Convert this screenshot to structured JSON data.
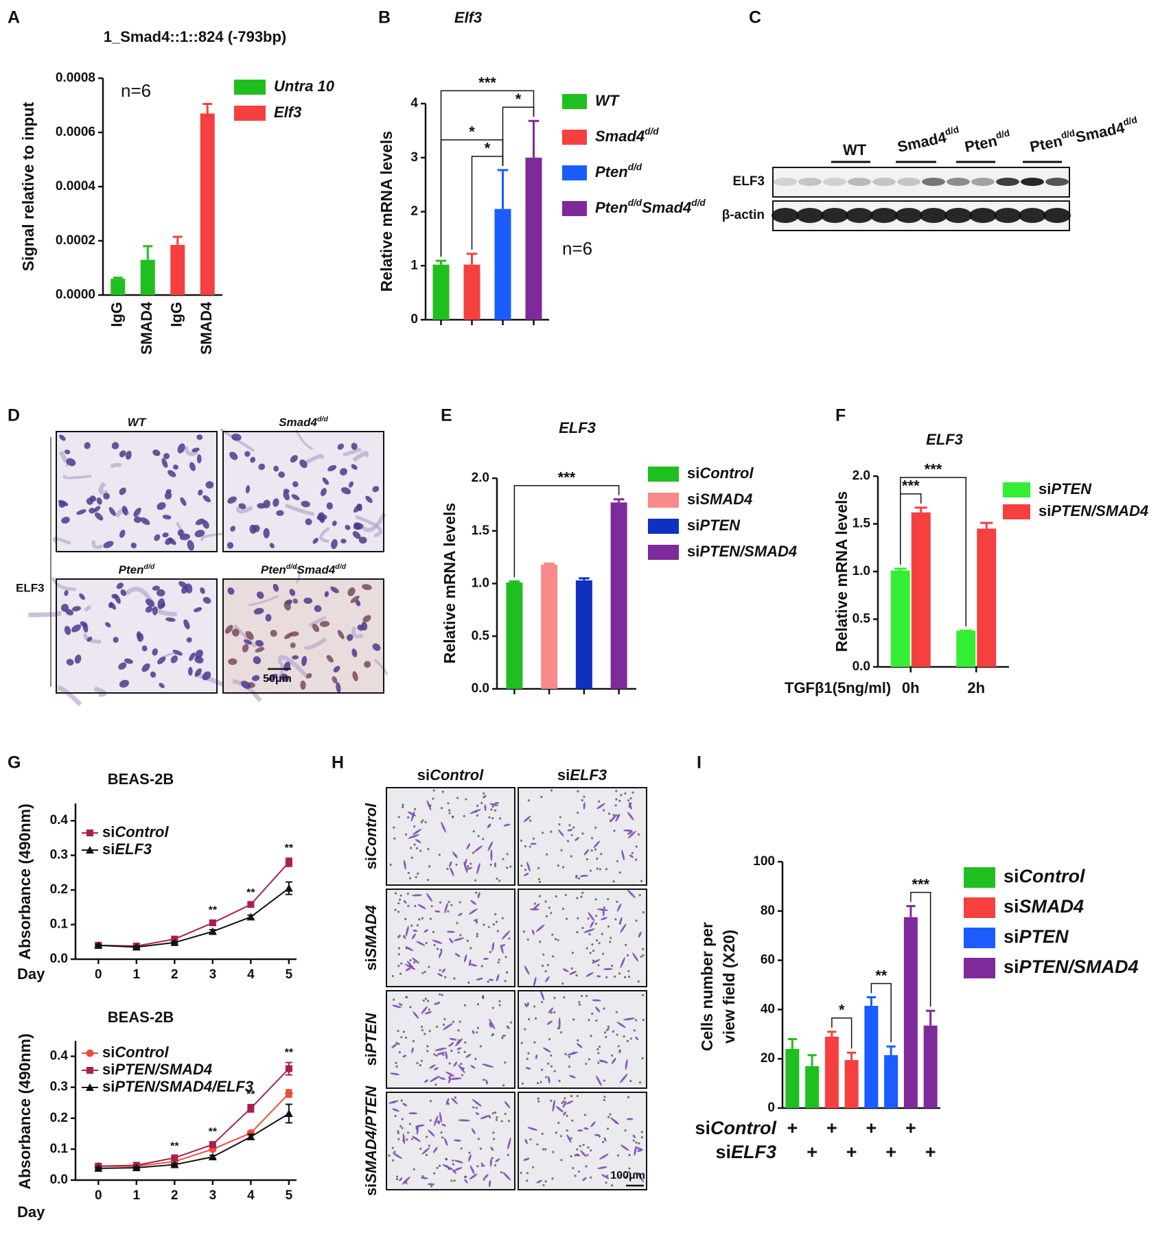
{
  "panel_labels": [
    "A",
    "B",
    "C",
    "D",
    "E",
    "F",
    "G",
    "H",
    "I"
  ],
  "chart_data": [
    {
      "type": "bar",
      "title": "1_Smad4::1::824 (-793bp)",
      "y_label": "Signal relative to input",
      "annotation": "n=6",
      "categories": [
        "IgG",
        "SMAD4",
        "IgG",
        "SMAD4"
      ],
      "rotate_categories": true,
      "series": [
        {
          "name": [
            {
              "text": "Untra 10",
              "italic": true
            }
          ],
          "color": "#1fbf1f",
          "values": [
            6e-05,
            0.00013,
            null,
            null
          ],
          "errors": [
            4e-06,
            5e-05,
            null,
            null
          ]
        },
        {
          "name": [
            {
              "text": "Elf3",
              "italic": true
            }
          ],
          "color": "#f5403f",
          "values": [
            null,
            null,
            0.000185,
            0.00067
          ],
          "errors": [
            null,
            null,
            3e-05,
            3.5e-05
          ]
        }
      ],
      "ylim": [
        0,
        0.0008
      ],
      "yticks": [
        {
          "value": 0,
          "label": "0.0000"
        },
        0.0002,
        0.0004,
        0.0006,
        0.0008
      ]
    },
    {
      "type": "bar",
      "title": [
        {
          "text": "Elf3",
          "italic": true
        }
      ],
      "y_label": "Relative mRNA levels",
      "annotation": "n=6",
      "categories": [
        null,
        null,
        null,
        null
      ],
      "series": [
        {
          "name": [
            {
              "text": "WT",
              "italic": true
            }
          ],
          "color": "#1fbf1f",
          "values": [
            1.02,
            null,
            null,
            null
          ],
          "errors": [
            0.07,
            null,
            null,
            null
          ]
        },
        {
          "name": [
            {
              "text": "Smad4",
              "italic": true
            },
            {
              "text": "d/d",
              "italic": true,
              "sup": true
            }
          ],
          "color": "#f5403f",
          "values": [
            null,
            1.02,
            null,
            null
          ],
          "errors": [
            null,
            0.2,
            null,
            null
          ]
        },
        {
          "name": [
            {
              "text": "Pten",
              "italic": true
            },
            {
              "text": "d/d",
              "italic": true,
              "sup": true
            }
          ],
          "color": "#1a5cff",
          "values": [
            null,
            null,
            2.05,
            null
          ],
          "errors": [
            null,
            null,
            0.72,
            null
          ]
        },
        {
          "name": [
            {
              "text": "Pten",
              "italic": true
            },
            {
              "text": "d/d",
              "italic": true,
              "sup": true
            },
            {
              "text": "Smad4",
              "italic": true
            },
            {
              "text": "d/d",
              "italic": true,
              "sup": true
            }
          ],
          "color": "#7f2a9a",
          "values": [
            null,
            null,
            null,
            3.0
          ],
          "errors": [
            null,
            null,
            null,
            0.68
          ]
        }
      ],
      "ylim": [
        0,
        4
      ],
      "yticks": [
        0,
        1,
        2,
        3,
        4
      ],
      "significance": [
        {
          "from": [
            1,
            1
          ],
          "to": [
            2,
            2
          ],
          "label": "*"
        },
        {
          "from": [
            0,
            0
          ],
          "to": [
            2,
            2
          ],
          "label": "*"
        },
        {
          "from": [
            2,
            2
          ],
          "to": [
            3,
            3
          ],
          "label": "*"
        },
        {
          "from": [
            0,
            0
          ],
          "to": [
            3,
            3
          ],
          "label": "***"
        }
      ]
    },
    {
      "type": "bar",
      "title": [
        {
          "text": "ELF3",
          "italic": true
        }
      ],
      "y_label": "Relative mRNA levels",
      "categories": [
        null,
        null,
        null,
        null
      ],
      "series": [
        {
          "name": [
            {
              "text": "si"
            },
            {
              "text": "Control",
              "italic": true
            }
          ],
          "color": "#1fbf1f",
          "values": [
            1.01,
            null,
            null,
            null
          ],
          "errors": [
            0.01,
            null,
            null,
            null
          ]
        },
        {
          "name": [
            {
              "text": "si"
            },
            {
              "text": "SMAD4",
              "italic": true
            }
          ],
          "color": "#f88a8a",
          "values": [
            null,
            1.18,
            null,
            null
          ],
          "errors": [
            null,
            0.01,
            null,
            null
          ]
        },
        {
          "name": [
            {
              "text": "si"
            },
            {
              "text": "PTEN",
              "italic": true
            }
          ],
          "color": "#1030c0",
          "values": [
            null,
            null,
            1.03,
            null
          ],
          "errors": [
            null,
            null,
            0.02,
            null
          ]
        },
        {
          "name": [
            {
              "text": "si"
            },
            {
              "text": "PTEN/SMAD4",
              "italic": true
            }
          ],
          "color": "#7d2a9a",
          "values": [
            null,
            null,
            null,
            1.77
          ],
          "errors": [
            null,
            null,
            null,
            0.03
          ]
        }
      ],
      "ylim": [
        0,
        2
      ],
      "yticks": [
        {
          "value": 0,
          "label": "0.0"
        },
        0.5,
        {
          "value": 1,
          "label": "1.0"
        },
        1.5,
        {
          "value": 2,
          "label": "2.0"
        }
      ],
      "significance": [
        {
          "from": [
            0,
            0
          ],
          "to": [
            3,
            3
          ],
          "label": "***"
        }
      ]
    },
    {
      "type": "bar",
      "title": [
        {
          "text": "ELF3",
          "italic": true
        }
      ],
      "y_label": "Relative mRNA levels",
      "x_label": "TGFβ1(5ng/ml)",
      "categories": [
        "0h",
        "2h"
      ],
      "series": [
        {
          "name": [
            {
              "text": "si"
            },
            {
              "text": "PTEN",
              "italic": true
            }
          ],
          "color": "#33ee33",
          "values": [
            1.01,
            0.38
          ],
          "errors": [
            0.02,
            0
          ]
        },
        {
          "name": [
            {
              "text": "si"
            },
            {
              "text": "PTEN/SMAD4",
              "italic": true
            }
          ],
          "color": "#f5403f",
          "values": [
            1.62,
            1.45
          ],
          "errors": [
            0.05,
            0.06
          ]
        }
      ],
      "ylim": [
        0,
        2
      ],
      "yticks": [
        {
          "value": 0,
          "label": "0.0"
        },
        0.5,
        {
          "value": 1,
          "label": "1.0"
        },
        1.5,
        {
          "value": 2,
          "label": "2.0"
        }
      ],
      "significance": [
        {
          "from": [
            0,
            0
          ],
          "to": [
            0,
            1
          ],
          "label": "***"
        },
        {
          "from": [
            0,
            0
          ],
          "to": [
            1,
            0
          ],
          "label": "***"
        }
      ]
    },
    {
      "type": "line",
      "title": "BEAS-2B",
      "y_label": "Absorbance (490nm)",
      "x_label": "Day",
      "x": [
        0,
        1,
        2,
        3,
        4,
        5
      ],
      "xlim": [
        -0.6,
        5.2
      ],
      "xticks": [
        0,
        1,
        2,
        3,
        4,
        5
      ],
      "ylim": [
        0,
        0.45
      ],
      "yticks": [
        {
          "value": 0,
          "label": "0.0"
        },
        0.1,
        0.2,
        0.3,
        0.4
      ],
      "series": [
        {
          "name": [
            {
              "text": "si"
            },
            {
              "text": "Control",
              "italic": true
            }
          ],
          "color": "#a8204f",
          "marker": "square",
          "values": [
            0.04,
            0.038,
            0.058,
            0.105,
            0.158,
            0.28
          ],
          "errors": [
            0.003,
            0.003,
            0.004,
            0.007,
            0.005,
            0.012
          ]
        },
        {
          "name": [
            {
              "text": "si"
            },
            {
              "text": "ELF3",
              "italic": true
            }
          ],
          "color": "#111111",
          "marker": "triangle",
          "values": [
            0.04,
            0.035,
            0.048,
            0.08,
            0.122,
            0.205
          ],
          "errors": [
            0.003,
            0.003,
            0.003,
            0.005,
            0.005,
            0.018
          ]
        }
      ],
      "annotations": [
        {
          "x": 3,
          "label": "**"
        },
        {
          "x": 4,
          "label": "**"
        },
        {
          "x": 5,
          "label": "**"
        }
      ]
    },
    {
      "type": "line",
      "title": "BEAS-2B",
      "y_label": "Absorbance (490nm)",
      "x_label": "Day",
      "x": [
        0,
        1,
        2,
        3,
        4,
        5
      ],
      "xlim": [
        -0.6,
        5.2
      ],
      "xticks": [
        0,
        1,
        2,
        3,
        4,
        5
      ],
      "ylim": [
        0,
        0.45
      ],
      "yticks": [
        {
          "value": 0,
          "label": "0.0"
        },
        0.1,
        0.2,
        0.3,
        0.4
      ],
      "series": [
        {
          "name": [
            {
              "text": "si"
            },
            {
              "text": "Control",
              "italic": true
            }
          ],
          "color": "#f04a3c",
          "marker": "circle",
          "values": [
            0.045,
            0.045,
            0.06,
            0.1,
            0.152,
            0.28
          ],
          "errors": [
            0.003,
            0.003,
            0.004,
            0.005,
            0.006,
            0.012
          ]
        },
        {
          "name": [
            {
              "text": "si"
            },
            {
              "text": "PTEN/SMAD4",
              "italic": true
            }
          ],
          "color": "#a8204f",
          "marker": "square",
          "values": [
            0.045,
            0.048,
            0.072,
            0.115,
            0.232,
            0.36
          ],
          "errors": [
            0.003,
            0.003,
            0.005,
            0.008,
            0.012,
            0.02
          ]
        },
        {
          "name": [
            {
              "text": "si"
            },
            {
              "text": "PTEN/SMAD4/ELF3",
              "italic": true
            }
          ],
          "color": "#111111",
          "marker": "triangle",
          "values": [
            0.038,
            0.04,
            0.05,
            0.075,
            0.14,
            0.215
          ],
          "errors": [
            0.003,
            0.003,
            0.004,
            0.005,
            0.008,
            0.03
          ]
        }
      ],
      "annotations": [
        {
          "x": 2,
          "label": "**"
        },
        {
          "x": 3,
          "label": "**"
        },
        {
          "x": 4,
          "label": "**"
        },
        {
          "x": 5,
          "label": "**"
        }
      ]
    },
    {
      "type": "bar",
      "y_label": [
        "Cells number per",
        "view field (X20)"
      ],
      "categories": [
        null,
        null,
        null,
        null,
        null,
        null,
        null,
        null
      ],
      "series": [
        {
          "name": [
            {
              "text": "si"
            },
            {
              "text": "Control",
              "italic": true
            }
          ],
          "color": "#1fbf1f",
          "values": [
            24,
            17,
            null,
            null,
            null,
            null,
            null,
            null
          ],
          "errors": [
            4,
            4.5,
            null,
            null,
            null,
            null,
            null,
            null
          ]
        },
        {
          "name": [
            {
              "text": "si"
            },
            {
              "text": "SMAD4",
              "italic": true
            }
          ],
          "color": "#f5403f",
          "values": [
            null,
            null,
            29,
            19.5,
            null,
            null,
            null,
            null
          ],
          "errors": [
            null,
            null,
            2,
            3,
            null,
            null,
            null,
            null
          ]
        },
        {
          "name": [
            {
              "text": "si"
            },
            {
              "text": "PTEN",
              "italic": true
            }
          ],
          "color": "#1a5cff",
          "values": [
            null,
            null,
            null,
            null,
            41.5,
            21.5,
            null,
            null
          ],
          "errors": [
            null,
            null,
            null,
            null,
            3.5,
            3.5,
            null,
            null
          ]
        },
        {
          "name": [
            {
              "text": "si"
            },
            {
              "text": "PTEN/SMAD4",
              "italic": true
            }
          ],
          "color": "#7f2a9a",
          "values": [
            null,
            null,
            null,
            null,
            null,
            null,
            77.5,
            33.5
          ],
          "errors": [
            null,
            null,
            null,
            null,
            null,
            null,
            4.5,
            6
          ]
        }
      ],
      "ylim": [
        0,
        100
      ],
      "yticks": [
        0,
        20,
        40,
        60,
        80,
        100
      ],
      "significance": [
        {
          "from": [
            2,
            1
          ],
          "to": [
            3,
            1
          ],
          "label": "*"
        },
        {
          "from": [
            4,
            2
          ],
          "to": [
            5,
            2
          ],
          "label": "**"
        },
        {
          "from": [
            6,
            3
          ],
          "to": [
            7,
            3
          ],
          "label": "***"
        }
      ],
      "treatments": [
        {
          "label": [
            {
              "text": "si"
            },
            {
              "text": "Control",
              "italic": true
            }
          ],
          "marks": [
            "+",
            null,
            "+",
            null,
            "+",
            null,
            "+",
            null
          ]
        },
        {
          "label": [
            {
              "text": "si"
            },
            {
              "text": "ELF3",
              "italic": true
            }
          ],
          "marks": [
            null,
            "+",
            null,
            "+",
            null,
            "+",
            null,
            "+"
          ]
        }
      ]
    }
  ],
  "blot": {
    "lanes": [
      [
        {
          "text": "WT"
        }
      ],
      [
        {
          "text": "Smad4"
        },
        {
          "text": "d/d",
          "sup": true
        }
      ],
      [
        {
          "text": "Pten"
        },
        {
          "text": "d/d",
          "sup": true
        }
      ],
      [
        {
          "text": "Pten"
        },
        {
          "text": "d/d",
          "sup": true
        },
        {
          "text": "Smad4"
        },
        {
          "text": "d/d",
          "sup": true
        }
      ]
    ],
    "rows": [
      "ELF3",
      "β-actin"
    ]
  },
  "histology": {
    "stain": "ELF3",
    "panels": [
      [
        {
          "text": "WT",
          "italic": true
        }
      ],
      [
        {
          "text": "Smad4",
          "italic": true
        },
        {
          "text": "d/d",
          "sup": true
        }
      ],
      [
        {
          "text": "Pten",
          "italic": true
        },
        {
          "text": "d/d",
          "sup": true
        }
      ],
      [
        {
          "text": "Pten",
          "italic": true
        },
        {
          "text": "d/d",
          "sup": true
        },
        {
          "text": "Smad4",
          "italic": true
        },
        {
          "text": "d/d",
          "sup": true
        }
      ]
    ],
    "scale_bar": "50μm"
  },
  "transwell": {
    "columns": [
      [
        {
          "text": "si"
        },
        {
          "text": "Control",
          "italic": true
        }
      ],
      [
        {
          "text": "si"
        },
        {
          "text": "ELF3",
          "italic": true
        }
      ]
    ],
    "rows": [
      [
        {
          "text": "si"
        },
        {
          "text": "Control",
          "italic": true
        }
      ],
      [
        {
          "text": "si"
        },
        {
          "text": "SMAD4",
          "italic": true
        }
      ],
      [
        {
          "text": "si"
        },
        {
          "text": "PTEN",
          "italic": true
        }
      ],
      [
        {
          "text": "si"
        },
        {
          "text": "SMAD4/PTEN",
          "italic": true
        }
      ]
    ],
    "scale_bar": "100μm"
  }
}
